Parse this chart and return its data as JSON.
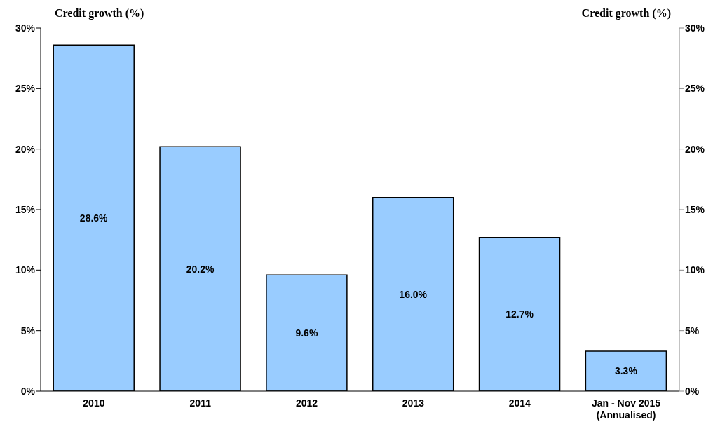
{
  "chart_data": {
    "type": "bar",
    "categories": [
      "2010",
      "2011",
      "2012",
      "2013",
      "2014",
      "Jan - Nov 2015\n(Annualised)"
    ],
    "values": [
      28.6,
      20.2,
      9.6,
      16.0,
      12.7,
      3.3
    ],
    "color": "#99ccff",
    "value_labels": [
      "28.6%",
      "20.2%",
      "9.6%",
      "16.0%",
      "12.7%",
      "3.3%"
    ],
    "ylabel": "Credit growth (%)",
    "y2label": "Credit growth (%)",
    "ylim": [
      0,
      30
    ],
    "yticks": [
      {
        "value": 0,
        "label": "0%"
      },
      {
        "value": 5,
        "label": "5%"
      },
      {
        "value": 10,
        "label": "10%"
      },
      {
        "value": 15,
        "label": "15%"
      },
      {
        "value": 20,
        "label": "20%"
      },
      {
        "value": 25,
        "label": "25%"
      },
      {
        "value": 30,
        "label": "30%"
      }
    ],
    "y2lim": [
      0,
      30
    ],
    "y2ticks": [
      {
        "value": 0,
        "label": "0%"
      },
      {
        "value": 5,
        "label": "5%"
      },
      {
        "value": 10,
        "label": "10%"
      },
      {
        "value": 15,
        "label": "15%"
      },
      {
        "value": 20,
        "label": "20%"
      },
      {
        "value": 25,
        "label": "25%"
      },
      {
        "value": 30,
        "label": "30%"
      }
    ],
    "grid": false,
    "legend": false
  }
}
